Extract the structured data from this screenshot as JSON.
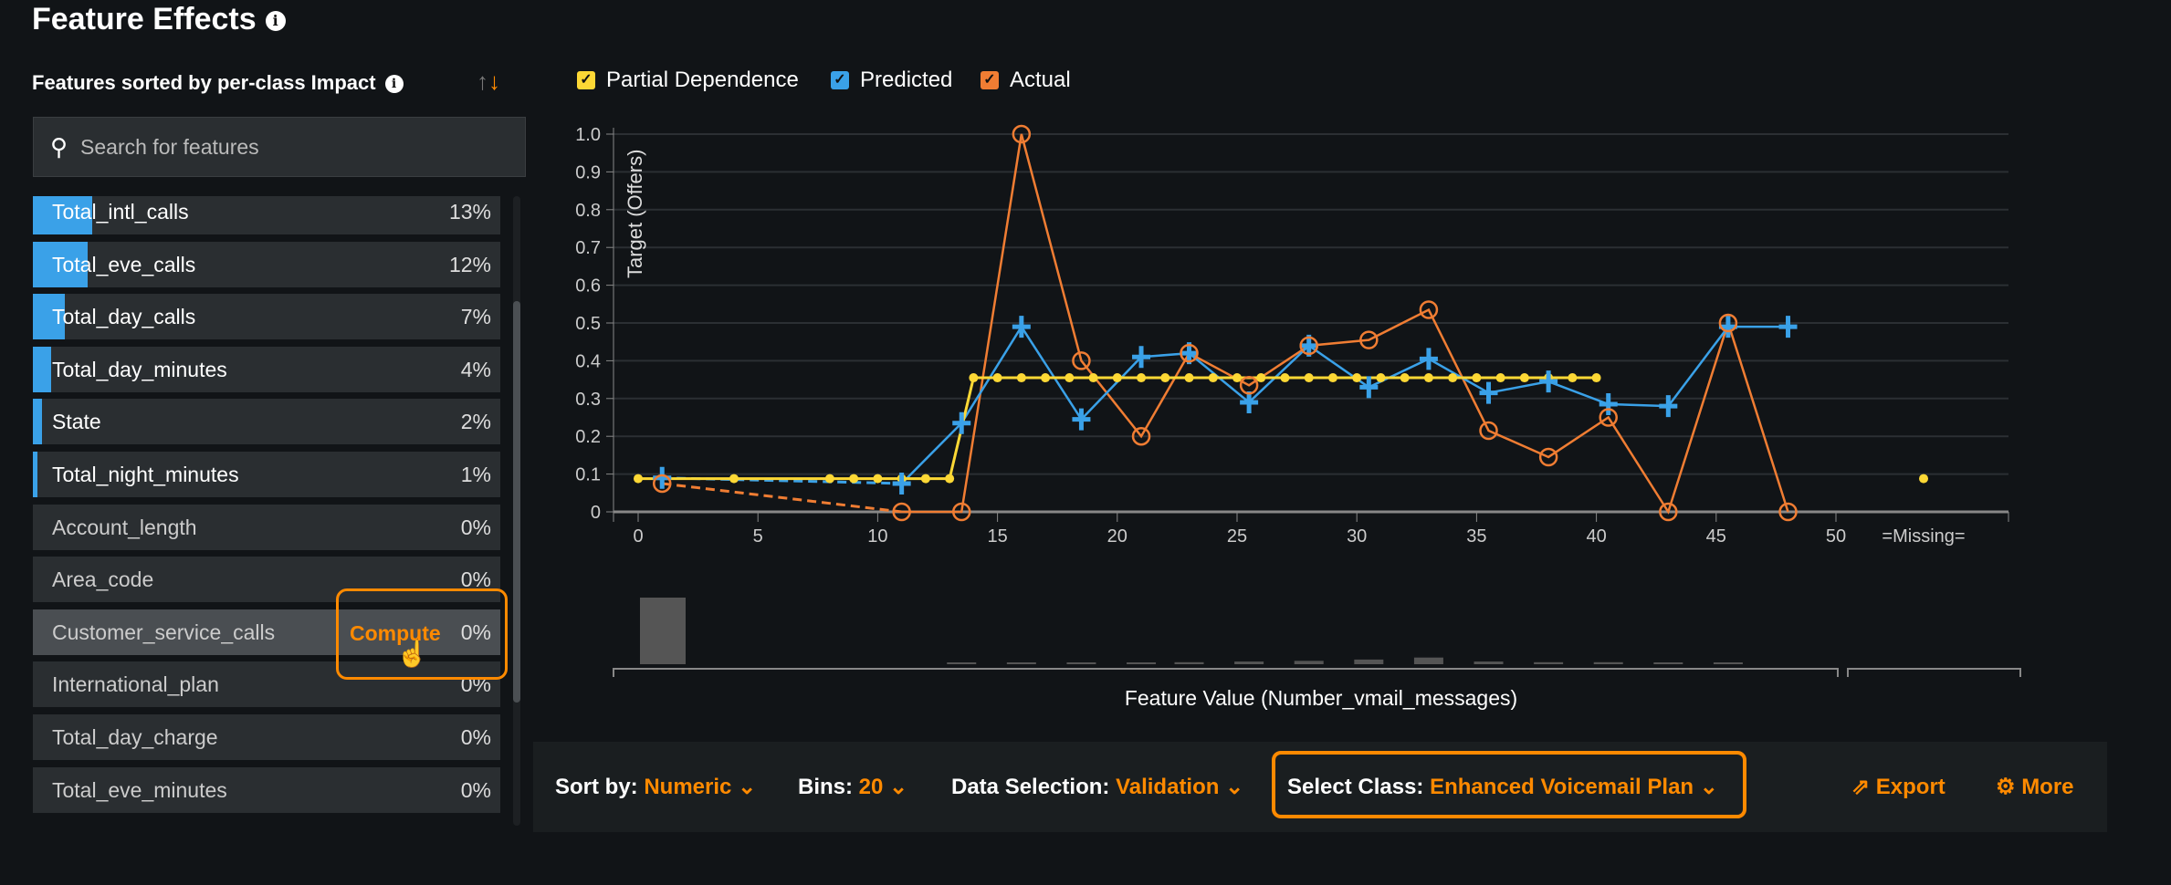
{
  "title": "Feature Effects",
  "sidebar": {
    "sort_label": "Features sorted by per-class Impact",
    "search_placeholder": "Search for features",
    "compute_label": "Compute",
    "features": [
      {
        "name": "Total_intl_calls",
        "impact": "13%",
        "value": 13
      },
      {
        "name": "Total_eve_calls",
        "impact": "12%",
        "value": 12
      },
      {
        "name": "Total_day_calls",
        "impact": "7%",
        "value": 7
      },
      {
        "name": "Total_day_minutes",
        "impact": "4%",
        "value": 4
      },
      {
        "name": "State",
        "impact": "2%",
        "value": 2
      },
      {
        "name": "Total_night_minutes",
        "impact": "1%",
        "value": 1
      },
      {
        "name": "Account_length",
        "impact": "0%",
        "value": 0
      },
      {
        "name": "Area_code",
        "impact": "0%",
        "value": 0
      },
      {
        "name": "Customer_service_calls",
        "impact": "0%",
        "value": 0
      },
      {
        "name": "International_plan",
        "impact": "0%",
        "value": 0
      },
      {
        "name": "Total_day_charge",
        "impact": "0%",
        "value": 0
      },
      {
        "name": "Total_eve_minutes",
        "impact": "0%",
        "value": 0
      }
    ]
  },
  "legend": {
    "pd": "Partial Dependence",
    "pred": "Predicted",
    "act": "Actual"
  },
  "colors": {
    "pd": "#fdd835",
    "pred": "#3aa1e8",
    "act": "#f07d33",
    "accent": "#ff8a00"
  },
  "chart_data": {
    "type": "line",
    "ylabel": "Target (Offers)",
    "xlabel": "Feature Value (Number_vmail_messages)",
    "ylim": [
      0,
      1
    ],
    "xlim": [
      0,
      50
    ],
    "yticks": [
      "0",
      "0.1",
      "0.2",
      "0.3",
      "0.4",
      "0.5",
      "0.6",
      "0.7",
      "0.8",
      "0.9",
      "1.0"
    ],
    "xticks": [
      "0",
      "5",
      "10",
      "15",
      "20",
      "25",
      "30",
      "35",
      "40",
      "45",
      "50"
    ],
    "missing_label": "=Missing=",
    "series": [
      {
        "name": "Partial Dependence",
        "x": [
          0,
          4,
          8,
          9,
          10,
          11,
          12,
          13,
          14,
          15,
          16,
          17,
          18,
          19,
          20,
          21,
          22,
          23,
          24,
          25,
          26,
          27,
          28,
          29,
          30,
          31,
          32,
          33,
          34,
          35,
          36,
          37,
          38,
          39,
          40
        ],
        "y": [
          0.088,
          0.088,
          0.088,
          0.088,
          0.088,
          0.088,
          0.088,
          0.088,
          0.355,
          0.355,
          0.355,
          0.355,
          0.355,
          0.355,
          0.355,
          0.355,
          0.355,
          0.355,
          0.355,
          0.355,
          0.355,
          0.355,
          0.355,
          0.355,
          0.355,
          0.355,
          0.355,
          0.355,
          0.355,
          0.355,
          0.355,
          0.355,
          0.355,
          0.355,
          0.355
        ],
        "missing": 0.088
      },
      {
        "name": "Predicted",
        "x": [
          1,
          11,
          13.5,
          16,
          18.5,
          21,
          23,
          25.5,
          28,
          30.5,
          33,
          35.5,
          38,
          40.5,
          43,
          45.5,
          48
        ],
        "y": [
          0.09,
          0.075,
          0.235,
          0.49,
          0.245,
          0.41,
          0.42,
          0.29,
          0.44,
          0.33,
          0.405,
          0.315,
          0.345,
          0.285,
          0.28,
          0.49,
          0.49
        ]
      },
      {
        "name": "Actual",
        "x": [
          1,
          11,
          13.5,
          16,
          18.5,
          21,
          23,
          25.5,
          28,
          30.5,
          33,
          35.5,
          38,
          40.5,
          43,
          45.5,
          48
        ],
        "y": [
          0.075,
          0,
          0,
          1.0,
          0.4,
          0.2,
          0.42,
          0.335,
          0.44,
          0.455,
          0.535,
          0.215,
          0.145,
          0.25,
          0,
          0.5,
          0
        ]
      }
    ],
    "histogram": {
      "x": [
        1,
        13.5,
        16,
        18.5,
        21,
        23,
        25.5,
        28,
        30.5,
        33,
        35.5,
        38,
        40.5,
        43,
        45.5
      ],
      "counts": [
        100,
        1,
        1,
        1,
        1,
        3,
        4,
        5,
        7,
        10,
        4,
        3,
        3,
        2,
        1
      ]
    }
  },
  "toolbar": {
    "sort_label": "Sort by:",
    "sort_value": "Numeric",
    "bins_label": "Bins:",
    "bins_value": "20",
    "data_label": "Data Selection:",
    "data_value": "Validation",
    "class_label": "Select Class:",
    "class_value": "Enhanced Voicemail Plan",
    "export": "Export",
    "more": "More"
  }
}
